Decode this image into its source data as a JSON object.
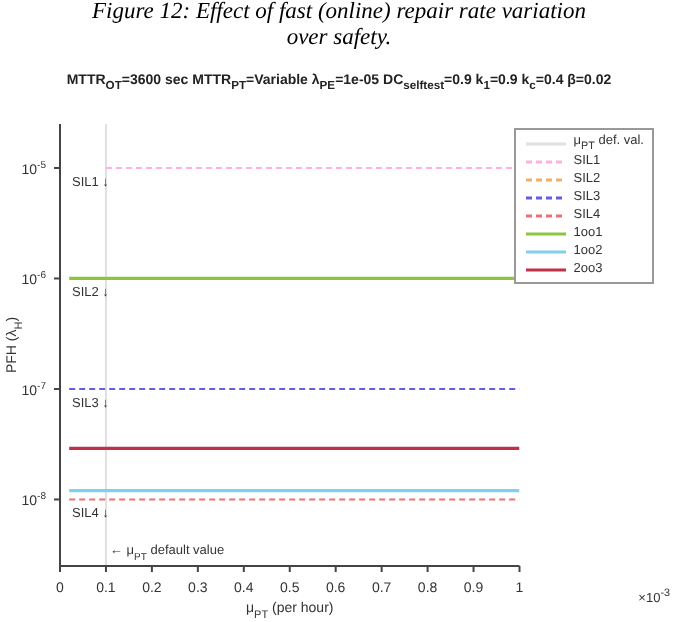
{
  "chart_data": {
    "type": "line",
    "title": "MTTR$_{OT}$=3600 sec   MTTR$_{PT}$=Variable   λ$_{PE}$=1e-05   DC$_{selftest}$=0.9   k$_{1}$=0.9   k$_{c}$=0.4   β=0.02",
    "xlabel": "μ$_{PT}$ (per hour)",
    "ylabel": "PFH (λ$_{H}$)",
    "annotations": [
      "Figure 12: Effect of fast (online) repair rate variation over safety.",
      "×10$^{-3}$",
      "SIL1 ↓",
      "SIL2 ↓",
      "SIL3 ↓",
      "SIL4 ↓",
      "← μ$_{PT}$ default value"
    ],
    "log": "y",
    "legend": "top right",
    "xlim": [
      0,
      1
    ],
    "xticks": [
      0,
      0.1,
      0.2,
      0.3,
      0.4,
      0.5,
      0.6,
      0.7,
      0.8,
      0.9,
      1
    ],
    "ylim": [
      2.5e-09,
      2.5e-05
    ],
    "yticks": [
      {
        "value": 1e-08,
        "label": "10$^{-8}$"
      },
      {
        "value": 1e-07,
        "label": "10$^{-7}$"
      },
      {
        "value": 1e-06,
        "label": "10$^{-6}$"
      },
      {
        "value": 1e-05,
        "label": "10$^{-5}$"
      }
    ],
    "series": [
      {
        "name": "μ$_{PT}$ def. val.",
        "color": "#e0e0e0",
        "x": [
          0.1,
          0.1
        ],
        "values": [
          2.5e-09,
          2.5e-05
        ],
        "line_style": "solid"
      },
      {
        "name": "SIL1",
        "color": "#ffb0e0",
        "x": [
          0.1,
          1
        ],
        "values": [
          1e-05,
          1e-05
        ],
        "line_style": "dashed"
      },
      {
        "name": "SIL2",
        "color": "#f0b060",
        "values": [
          null,
          null
        ],
        "line_style": "dashed"
      },
      {
        "name": "SIL3",
        "color": "#6060e0",
        "x": [
          0.02,
          1
        ],
        "values": [
          1e-07,
          1e-07
        ],
        "line_style": "dashed"
      },
      {
        "name": "SIL4",
        "color": "#f07070",
        "x": [
          0.02,
          1
        ],
        "values": [
          1e-08,
          1e-08
        ],
        "line_style": "dashed"
      },
      {
        "name": "1oo1",
        "color": "#8cc63f",
        "x": [
          0.02,
          1
        ],
        "values": [
          1e-06,
          1e-06
        ],
        "line_style": "solid"
      },
      {
        "name": "1oo2",
        "color": "#7fd0ee",
        "x": [
          0.02,
          1
        ],
        "values": [
          1.2e-08,
          1.2e-08
        ],
        "line_style": "solid"
      },
      {
        "name": "2oo3",
        "color": "#c0304a",
        "x": [
          0.02,
          1
        ],
        "values": [
          2.9e-08,
          2.9e-08
        ],
        "line_style": "solid"
      }
    ]
  }
}
